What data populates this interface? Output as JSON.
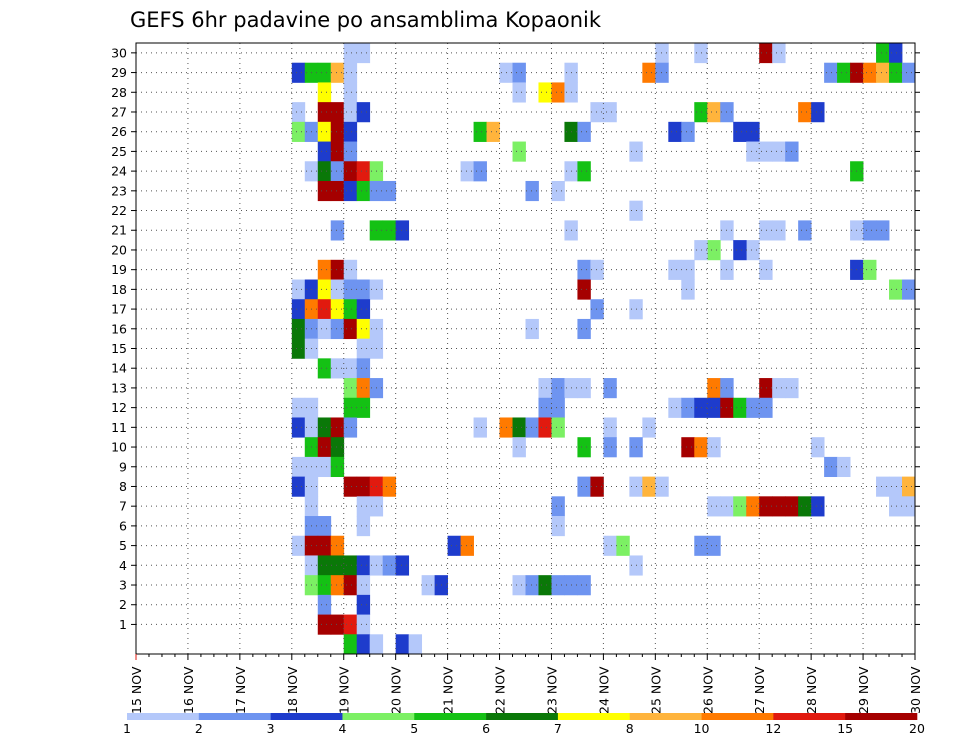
{
  "chart_data": {
    "type": "heatmap",
    "title": "GEFS 6hr padavine po ansamblima Kopaonik",
    "xlabel": "",
    "ylabel": "",
    "x_ticks": [
      "15 NOV",
      "16 NOV",
      "17 NOV",
      "18 NOV",
      "19 NOV",
      "20 NOV",
      "21 NOV",
      "22 NOV",
      "23 NOV",
      "24 NOV",
      "25 NOV",
      "26 NOV",
      "27 NOV",
      "28 NOV",
      "29 NOV",
      "30 NOV"
    ],
    "x_range_days": [
      15,
      30
    ],
    "y_ticks": [
      1,
      2,
      3,
      4,
      5,
      6,
      7,
      8,
      9,
      10,
      11,
      12,
      13,
      14,
      15,
      16,
      17,
      18,
      19,
      20,
      21,
      22,
      23,
      24,
      25,
      26,
      27,
      28,
      29,
      30
    ],
    "y_range": [
      0,
      30
    ],
    "grid": true,
    "legend": {
      "position": "bottom",
      "colors": [
        "#b4c8fa",
        "#6e94f0",
        "#1e3ccc",
        "#7cf064",
        "#14c114",
        "#0a7808",
        "#ffff00",
        "#ffb43c",
        "#ff7a00",
        "#e11a0f",
        "#a50000"
      ],
      "labels": [
        "1",
        "2",
        "3",
        "4",
        "5",
        "6",
        "7",
        "8",
        "10",
        "12",
        "15",
        "20"
      ]
    },
    "cell_values_note": "each cell: [member (y), start day in November (6-hour steps), precipitation mm / 6h]",
    "cells": [
      [
        30,
        19.0,
        1
      ],
      [
        30,
        19.25,
        1
      ],
      [
        30,
        25.0,
        1
      ],
      [
        30,
        25.75,
        1
      ],
      [
        30,
        27.0,
        15
      ],
      [
        30,
        27.25,
        1
      ],
      [
        30,
        29.25,
        5
      ],
      [
        30,
        29.5,
        3
      ],
      [
        29,
        18.0,
        3
      ],
      [
        29,
        18.25,
        5
      ],
      [
        29,
        18.5,
        5
      ],
      [
        29,
        18.75,
        8
      ],
      [
        29,
        19.0,
        1
      ],
      [
        29,
        22.0,
        1
      ],
      [
        29,
        22.25,
        2
      ],
      [
        29,
        23.25,
        1
      ],
      [
        29,
        24.75,
        10
      ],
      [
        29,
        25.0,
        2
      ],
      [
        29,
        28.25,
        2
      ],
      [
        29,
        28.5,
        5
      ],
      [
        29,
        28.75,
        20
      ],
      [
        29,
        29.0,
        10
      ],
      [
        29,
        29.25,
        8
      ],
      [
        29,
        29.5,
        5
      ],
      [
        29,
        29.75,
        2
      ],
      [
        28,
        18.5,
        7
      ],
      [
        28,
        19.0,
        1
      ],
      [
        28,
        22.25,
        1
      ],
      [
        28,
        22.75,
        7
      ],
      [
        28,
        23.0,
        10
      ],
      [
        28,
        23.25,
        1
      ],
      [
        27,
        18.0,
        1
      ],
      [
        27,
        18.5,
        20
      ],
      [
        27,
        18.75,
        20
      ],
      [
        27,
        19.0,
        1
      ],
      [
        27,
        19.25,
        3
      ],
      [
        27,
        23.75,
        1
      ],
      [
        27,
        24.0,
        1
      ],
      [
        27,
        25.75,
        5
      ],
      [
        27,
        26.0,
        8
      ],
      [
        27,
        26.25,
        2
      ],
      [
        27,
        27.75,
        10
      ],
      [
        27,
        28.0,
        3
      ],
      [
        26,
        18.0,
        4
      ],
      [
        26,
        18.25,
        2
      ],
      [
        26,
        18.5,
        7
      ],
      [
        26,
        18.75,
        15
      ],
      [
        26,
        19.0,
        3
      ],
      [
        26,
        21.5,
        5
      ],
      [
        26,
        21.75,
        8
      ],
      [
        26,
        23.25,
        6
      ],
      [
        26,
        23.5,
        2
      ],
      [
        26,
        25.25,
        3
      ],
      [
        26,
        25.5,
        2
      ],
      [
        26,
        26.5,
        3
      ],
      [
        26,
        26.75,
        3
      ],
      [
        25,
        18.5,
        3
      ],
      [
        25,
        18.75,
        15
      ],
      [
        25,
        19.0,
        2
      ],
      [
        25,
        22.25,
        4
      ],
      [
        25,
        24.5,
        1
      ],
      [
        25,
        26.75,
        1
      ],
      [
        25,
        27.0,
        1
      ],
      [
        25,
        27.25,
        1
      ],
      [
        25,
        27.5,
        2
      ],
      [
        24,
        18.25,
        1
      ],
      [
        24,
        18.5,
        6
      ],
      [
        24,
        18.75,
        2
      ],
      [
        24,
        19.0,
        15
      ],
      [
        24,
        19.25,
        12
      ],
      [
        24,
        19.5,
        4
      ],
      [
        24,
        21.25,
        1
      ],
      [
        24,
        21.5,
        2
      ],
      [
        24,
        23.25,
        1
      ],
      [
        24,
        23.5,
        5
      ],
      [
        24,
        28.75,
        5
      ],
      [
        23,
        18.5,
        20
      ],
      [
        23,
        18.75,
        15
      ],
      [
        23,
        19.0,
        3
      ],
      [
        23,
        19.25,
        5
      ],
      [
        23,
        19.5,
        2
      ],
      [
        23,
        19.75,
        2
      ],
      [
        23,
        22.5,
        2
      ],
      [
        23,
        23.0,
        1
      ],
      [
        22,
        24.5,
        1
      ],
      [
        21,
        18.75,
        2
      ],
      [
        21,
        19.5,
        5
      ],
      [
        21,
        19.75,
        5
      ],
      [
        21,
        20.0,
        3
      ],
      [
        21,
        23.25,
        1
      ],
      [
        21,
        26.25,
        1
      ],
      [
        21,
        27.0,
        1
      ],
      [
        21,
        27.25,
        1
      ],
      [
        21,
        27.75,
        2
      ],
      [
        21,
        28.75,
        1
      ],
      [
        21,
        29.0,
        2
      ],
      [
        21,
        29.25,
        2
      ],
      [
        20,
        26.75,
        1
      ],
      [
        20,
        26.0,
        4
      ],
      [
        20,
        25.75,
        1
      ],
      [
        20,
        26.5,
        3
      ],
      [
        19,
        18.5,
        10
      ],
      [
        19,
        18.75,
        20
      ],
      [
        19,
        19.0,
        1
      ],
      [
        19,
        23.5,
        2
      ],
      [
        19,
        23.75,
        1
      ],
      [
        19,
        25.25,
        1
      ],
      [
        19,
        25.5,
        1
      ],
      [
        19,
        26.25,
        1
      ],
      [
        19,
        27.0,
        1
      ],
      [
        19,
        28.75,
        3
      ],
      [
        19,
        29.0,
        4
      ],
      [
        18,
        18.0,
        1
      ],
      [
        18,
        18.25,
        3
      ],
      [
        18,
        18.5,
        7
      ],
      [
        18,
        18.75,
        1
      ],
      [
        18,
        19.0,
        2
      ],
      [
        18,
        19.25,
        2
      ],
      [
        18,
        19.5,
        1
      ],
      [
        18,
        23.5,
        20
      ],
      [
        18,
        25.5,
        1
      ],
      [
        18,
        29.5,
        4
      ],
      [
        18,
        29.75,
        2
      ],
      [
        17,
        18.0,
        3
      ],
      [
        17,
        18.25,
        10
      ],
      [
        17,
        18.5,
        12
      ],
      [
        17,
        18.75,
        7
      ],
      [
        17,
        19.0,
        5
      ],
      [
        17,
        19.25,
        3
      ],
      [
        17,
        23.75,
        2
      ],
      [
        17,
        24.5,
        1
      ],
      [
        16,
        18.0,
        6
      ],
      [
        16,
        18.25,
        2
      ],
      [
        16,
        18.5,
        1
      ],
      [
        16,
        18.75,
        2
      ],
      [
        16,
        19.0,
        20
      ],
      [
        16,
        19.25,
        7
      ],
      [
        16,
        19.5,
        1
      ],
      [
        16,
        22.5,
        1
      ],
      [
        16,
        23.5,
        2
      ],
      [
        15,
        18.0,
        6
      ],
      [
        15,
        18.25,
        1
      ],
      [
        15,
        19.25,
        1
      ],
      [
        15,
        19.5,
        1
      ],
      [
        14,
        18.5,
        5
      ],
      [
        14,
        18.75,
        1
      ],
      [
        14,
        19.0,
        1
      ],
      [
        14,
        19.25,
        2
      ],
      [
        13,
        19.0,
        4
      ],
      [
        13,
        19.25,
        10
      ],
      [
        13,
        19.5,
        2
      ],
      [
        13,
        22.75,
        1
      ],
      [
        13,
        23.0,
        2
      ],
      [
        13,
        23.25,
        1
      ],
      [
        13,
        23.5,
        1
      ],
      [
        13,
        24.0,
        2
      ],
      [
        13,
        26.0,
        10
      ],
      [
        13,
        26.25,
        2
      ],
      [
        13,
        27.0,
        20
      ],
      [
        13,
        27.25,
        1
      ],
      [
        13,
        27.5,
        1
      ],
      [
        12,
        18.0,
        1
      ],
      [
        12,
        18.25,
        1
      ],
      [
        12,
        19.0,
        5
      ],
      [
        12,
        19.25,
        5
      ],
      [
        12,
        22.75,
        2
      ],
      [
        12,
        23.0,
        2
      ],
      [
        12,
        25.25,
        1
      ],
      [
        12,
        25.5,
        2
      ],
      [
        12,
        25.75,
        3
      ],
      [
        12,
        26.0,
        3
      ],
      [
        12,
        26.25,
        15
      ],
      [
        12,
        26.5,
        5
      ],
      [
        12,
        26.75,
        2
      ],
      [
        12,
        27.0,
        2
      ],
      [
        11,
        18.0,
        3
      ],
      [
        11,
        18.25,
        1
      ],
      [
        11,
        18.5,
        6
      ],
      [
        11,
        18.75,
        15
      ],
      [
        11,
        19.0,
        2
      ],
      [
        11,
        21.5,
        1
      ],
      [
        11,
        22.0,
        10
      ],
      [
        11,
        22.25,
        6
      ],
      [
        11,
        22.5,
        2
      ],
      [
        11,
        22.75,
        12
      ],
      [
        11,
        23.0,
        4
      ],
      [
        11,
        24.0,
        1
      ],
      [
        11,
        24.75,
        1
      ],
      [
        10,
        18.25,
        5
      ],
      [
        10,
        18.5,
        15
      ],
      [
        10,
        18.75,
        6
      ],
      [
        10,
        22.25,
        1
      ],
      [
        10,
        23.5,
        5
      ],
      [
        10,
        24.0,
        2
      ],
      [
        10,
        24.5,
        2
      ],
      [
        10,
        25.5,
        20
      ],
      [
        10,
        25.75,
        10
      ],
      [
        10,
        26.0,
        1
      ],
      [
        10,
        28.0,
        1
      ],
      [
        9,
        18.0,
        1
      ],
      [
        9,
        18.25,
        1
      ],
      [
        9,
        18.5,
        1
      ],
      [
        9,
        18.75,
        5
      ],
      [
        9,
        28.25,
        2
      ],
      [
        9,
        28.5,
        1
      ],
      [
        8,
        18.0,
        3
      ],
      [
        8,
        18.25,
        1
      ],
      [
        8,
        19.0,
        20
      ],
      [
        8,
        19.25,
        15
      ],
      [
        8,
        19.5,
        12
      ],
      [
        8,
        19.75,
        10
      ],
      [
        8,
        23.5,
        2
      ],
      [
        8,
        23.75,
        15
      ],
      [
        8,
        24.5,
        1
      ],
      [
        8,
        24.75,
        8
      ],
      [
        8,
        25.0,
        1
      ],
      [
        8,
        29.25,
        1
      ],
      [
        8,
        29.5,
        1
      ],
      [
        8,
        29.75,
        8
      ],
      [
        7,
        18.25,
        1
      ],
      [
        7,
        19.25,
        1
      ],
      [
        7,
        19.5,
        1
      ],
      [
        7,
        23.0,
        2
      ],
      [
        7,
        26.0,
        1
      ],
      [
        7,
        26.25,
        1
      ],
      [
        7,
        26.5,
        4
      ],
      [
        7,
        26.75,
        10
      ],
      [
        7,
        27.0,
        20
      ],
      [
        7,
        27.25,
        15
      ],
      [
        7,
        27.5,
        15
      ],
      [
        7,
        27.75,
        6
      ],
      [
        7,
        28.0,
        3
      ],
      [
        7,
        29.5,
        1
      ],
      [
        7,
        29.75,
        1
      ],
      [
        6,
        18.25,
        2
      ],
      [
        6,
        18.5,
        2
      ],
      [
        6,
        19.25,
        1
      ],
      [
        6,
        23.0,
        1
      ],
      [
        5,
        18.0,
        1
      ],
      [
        5,
        18.25,
        20
      ],
      [
        5,
        18.5,
        20
      ],
      [
        5,
        18.75,
        10
      ],
      [
        5,
        21.0,
        3
      ],
      [
        5,
        21.25,
        10
      ],
      [
        5,
        24.0,
        1
      ],
      [
        5,
        24.25,
        4
      ],
      [
        5,
        25.75,
        2
      ],
      [
        5,
        26.0,
        2
      ],
      [
        4,
        18.25,
        1
      ],
      [
        4,
        18.5,
        6
      ],
      [
        4,
        18.75,
        6
      ],
      [
        4,
        19.0,
        6
      ],
      [
        4,
        19.25,
        3
      ],
      [
        4,
        19.5,
        1
      ],
      [
        4,
        19.75,
        2
      ],
      [
        4,
        20.0,
        3
      ],
      [
        4,
        24.5,
        1
      ],
      [
        3,
        18.25,
        4
      ],
      [
        3,
        18.5,
        5
      ],
      [
        3,
        18.75,
        10
      ],
      [
        3,
        19.0,
        20
      ],
      [
        3,
        19.25,
        1
      ],
      [
        3,
        20.5,
        1
      ],
      [
        3,
        20.75,
        3
      ],
      [
        3,
        22.25,
        1
      ],
      [
        3,
        22.5,
        2
      ],
      [
        3,
        22.75,
        6
      ],
      [
        3,
        23.0,
        2
      ],
      [
        3,
        23.25,
        2
      ],
      [
        3,
        23.5,
        2
      ],
      [
        2,
        18.5,
        2
      ],
      [
        2,
        19.25,
        3
      ],
      [
        1,
        18.5,
        20
      ],
      [
        1,
        18.75,
        15
      ],
      [
        1,
        19.0,
        12
      ],
      [
        1,
        19.25,
        1
      ],
      [
        0,
        19.0,
        5
      ],
      [
        0,
        19.25,
        3
      ],
      [
        0,
        19.5,
        1
      ],
      [
        0,
        20.0,
        3
      ],
      [
        0,
        20.25,
        1
      ]
    ]
  }
}
